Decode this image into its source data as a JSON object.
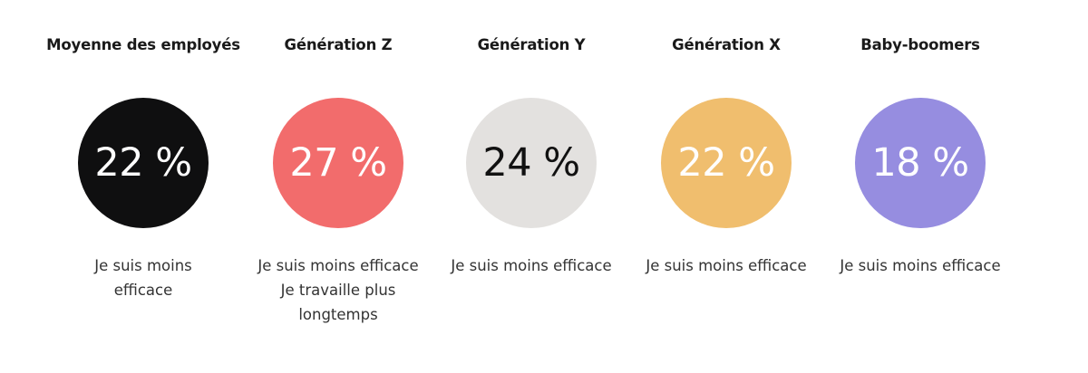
{
  "chart_data": {
    "type": "table",
    "categories": [
      "Moyenne des employés",
      "Génération Z",
      "Génération Y",
      "Génération X",
      "Baby-boomers"
    ],
    "values": [
      22,
      27,
      24,
      22,
      18
    ],
    "unit": "%"
  },
  "stats": [
    {
      "title": "Moyenne des employés",
      "value": "22 %",
      "desc_lines": [
        "Je suis moins",
        "efficace"
      ],
      "color": "#0f0f10",
      "text_color": "#ffffff"
    },
    {
      "title": "Génération Z",
      "value": "27 %",
      "desc_lines": [
        "Je suis moins efficace",
        "Je travaille plus",
        "longtemps"
      ],
      "color": "#f26c6c",
      "text_color": "#ffffff"
    },
    {
      "title": "Génération Y",
      "value": "24 %",
      "desc_lines": [
        "Je suis moins efficace"
      ],
      "color": "#e3e1df",
      "text_color": "#111111"
    },
    {
      "title": "Génération X",
      "value": "22 %",
      "desc_lines": [
        "Je suis moins efficace"
      ],
      "color": "#f0be6e",
      "text_color": "#ffffff"
    },
    {
      "title": "Baby-boomers",
      "value": "18 %",
      "desc_lines": [
        "Je suis moins efficace"
      ],
      "color": "#968de0",
      "text_color": "#ffffff"
    }
  ]
}
